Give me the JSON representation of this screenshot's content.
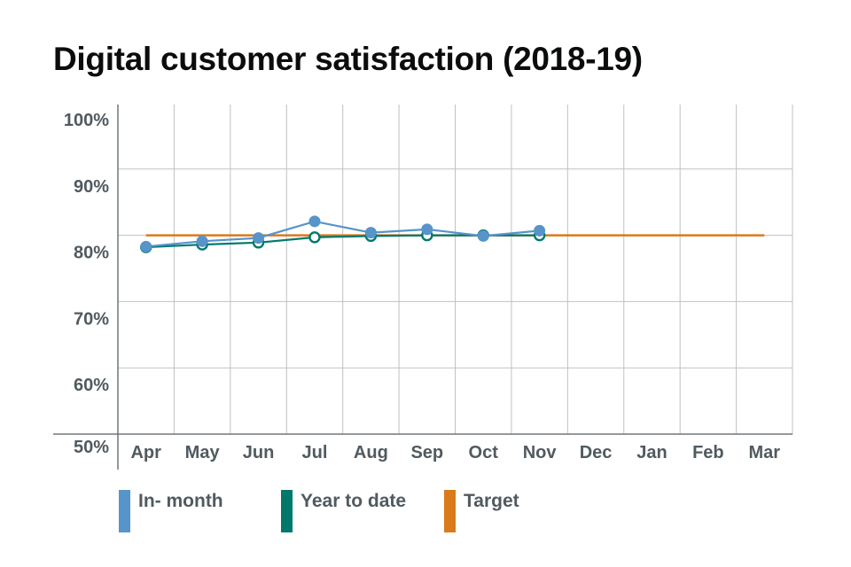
{
  "chart_data": {
    "type": "line",
    "title": "Digital customer satisfaction (2018-19)",
    "xlabel": "",
    "ylabel": "",
    "categories": [
      "Apr",
      "May",
      "Jun",
      "Jul",
      "Aug",
      "Sep",
      "Oct",
      "Nov",
      "Dec",
      "Jan",
      "Feb",
      "Mar"
    ],
    "ylim": [
      50,
      100
    ],
    "yticks": [
      {
        "value": 100,
        "label": "100%"
      },
      {
        "value": 90,
        "label": "90%"
      },
      {
        "value": 80,
        "label": "80%"
      },
      {
        "value": 70,
        "label": "70%"
      },
      {
        "value": 60,
        "label": "60%"
      },
      {
        "value": 50,
        "label": "50%"
      }
    ],
    "grid": true,
    "series": [
      {
        "key": "in-month",
        "name": "In- month",
        "color": "#5694ca",
        "marker": "filled-circle",
        "values": [
          78.3,
          79.1,
          79.6,
          82.1,
          80.4,
          80.9,
          79.9,
          80.7,
          null,
          null,
          null,
          null
        ]
      },
      {
        "key": "year-to-date",
        "name": "Year to date",
        "color": "#00796b",
        "marker": "hollow-circle",
        "values": [
          78.2,
          78.6,
          78.9,
          79.7,
          79.9,
          80.0,
          80.0,
          80.0,
          null,
          null,
          null,
          null
        ]
      },
      {
        "key": "target",
        "name": "Target",
        "color": "#d97a1b",
        "marker": "none",
        "values": [
          80,
          80,
          80,
          80,
          80,
          80,
          80,
          80,
          80,
          80,
          80,
          80
        ]
      }
    ],
    "legend_position": "bottom"
  }
}
